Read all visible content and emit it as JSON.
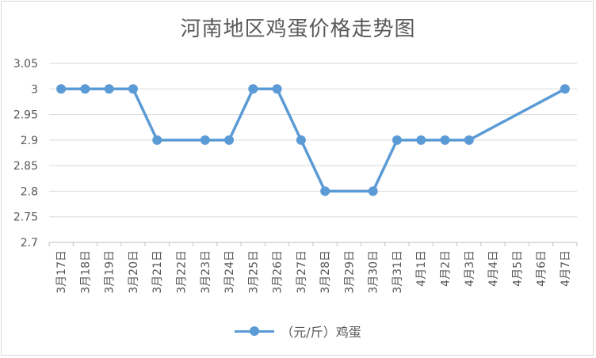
{
  "chart_data": {
    "type": "line",
    "title": "河南地区鸡蛋价格走势图",
    "categories": [
      "3月17日",
      "3月18日",
      "3月19日",
      "3月20日",
      "3月21日",
      "3月22日",
      "3月23日",
      "3月24日",
      "3月25日",
      "3月26日",
      "3月27日",
      "3月28日",
      "3月29日",
      "3月30日",
      "3月31日",
      "4月1日",
      "4月2日",
      "4月3日",
      "4月4日",
      "4月5日",
      "4月6日",
      "4月7日"
    ],
    "series": [
      {
        "name": "（元/斤）鸡蛋",
        "values": [
          3,
          3,
          3,
          3,
          2.9,
          null,
          2.9,
          2.9,
          3,
          3,
          2.9,
          2.8,
          null,
          2.8,
          2.9,
          2.9,
          2.9,
          2.9,
          null,
          null,
          null,
          3
        ],
        "color": "#5b9bd5"
      }
    ],
    "yticks": [
      "2.7",
      "2.75",
      "2.8",
      "2.85",
      "2.9",
      "2.95",
      "3",
      "3.05"
    ],
    "ylim": [
      2.7,
      3.05
    ],
    "grid": true,
    "legend_position": "bottom",
    "xlabel": "",
    "ylabel": ""
  }
}
